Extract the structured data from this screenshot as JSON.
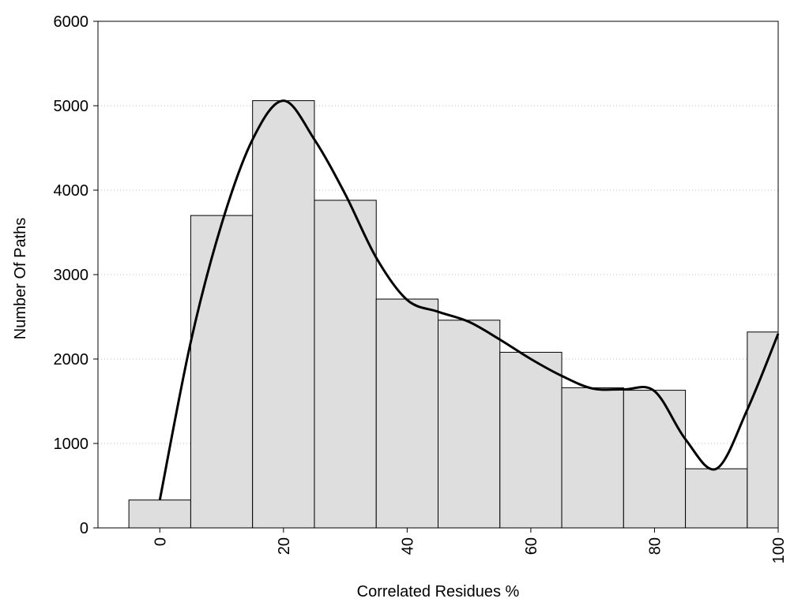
{
  "chart_data": {
    "type": "bar",
    "title": "",
    "xlabel": "Correlated Residues %",
    "ylabel": "Number Of Paths",
    "x": [
      0,
      10,
      20,
      30,
      40,
      50,
      60,
      70,
      80,
      90,
      100
    ],
    "values": [
      330,
      3700,
      5060,
      3880,
      2710,
      2460,
      2080,
      1660,
      1630,
      700,
      2320
    ],
    "bin_width": 10,
    "xlim": [
      -10,
      100
    ],
    "ylim": [
      0,
      6000
    ],
    "xticks": [
      "0",
      "20",
      "40",
      "60",
      "80",
      "100"
    ],
    "xtick_values": [
      0,
      20,
      40,
      60,
      80,
      100
    ],
    "yticks": [
      "0",
      "1000",
      "2000",
      "3000",
      "4000",
      "5000",
      "6000"
    ],
    "ytick_values": [
      0,
      1000,
      2000,
      3000,
      4000,
      5000,
      6000
    ],
    "grid": "horizontal dotted",
    "legend": "none",
    "curve": {
      "type": "smoothed line",
      "x": [
        0,
        5,
        10,
        15,
        20,
        25,
        30,
        35,
        40,
        45,
        50,
        55,
        60,
        65,
        70,
        75,
        80,
        85,
        90,
        95,
        100
      ],
      "y": [
        330,
        2200,
        3600,
        4600,
        5060,
        4600,
        3950,
        3200,
        2700,
        2560,
        2440,
        2230,
        2000,
        1800,
        1650,
        1640,
        1620,
        1050,
        700,
        1400,
        2300
      ]
    },
    "colors": {
      "bar_fill": "#dedede",
      "bar_stroke": "#000000",
      "curve": "#000000",
      "grid": "#bbbbbb"
    }
  }
}
